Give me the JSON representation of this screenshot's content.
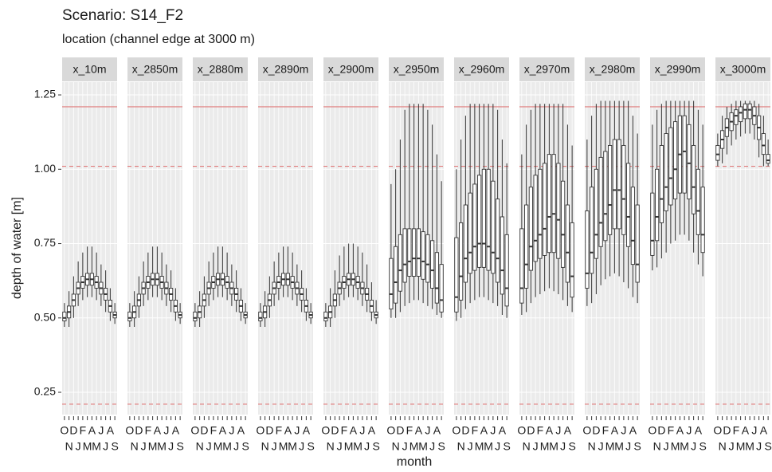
{
  "chart_data": {
    "type": "boxplot",
    "title": "Scenario: S14_F2",
    "subtitle": "location (channel edge at 3000 m)",
    "x_label": "month",
    "y_label": "depth of water [m]",
    "categories": [
      "O",
      "N",
      "D",
      "J",
      "F",
      "M",
      "A",
      "M",
      "J",
      "J",
      "A",
      "S"
    ],
    "ylim": [
      0.175,
      1.293
    ],
    "yticks": [
      {
        "value": 0.25,
        "label": "0.25"
      },
      {
        "value": 0.5,
        "label": "0.50"
      },
      {
        "value": 0.75,
        "label": "0.75"
      },
      {
        "value": 1,
        "label": "1.00"
      },
      {
        "value": 1.25,
        "label": "1.25"
      }
    ],
    "grid": true,
    "hlines": [
      {
        "value": 1.21,
        "color": "#e07b7b",
        "style": "solid"
      },
      {
        "value": 1.01,
        "color": "#e07b7b",
        "style": "dashed"
      },
      {
        "value": 0.21,
        "color": "#e07b7b",
        "style": "dashed"
      }
    ],
    "box_color": "#333333",
    "facets": [
      {
        "label": "x_10m",
        "lower": [
          0.47,
          0.47,
          0.5,
          0.54,
          0.56,
          0.57,
          0.57,
          0.56,
          0.54,
          0.52,
          0.49,
          0.48
        ],
        "q1": [
          0.49,
          0.5,
          0.54,
          0.58,
          0.6,
          0.61,
          0.61,
          0.6,
          0.58,
          0.56,
          0.52,
          0.5
        ],
        "median": [
          0.5,
          0.52,
          0.56,
          0.6,
          0.62,
          0.63,
          0.63,
          0.62,
          0.6,
          0.58,
          0.54,
          0.51
        ],
        "q3": [
          0.52,
          0.54,
          0.58,
          0.62,
          0.64,
          0.65,
          0.65,
          0.64,
          0.62,
          0.6,
          0.56,
          0.52
        ],
        "upper": [
          0.55,
          0.59,
          0.64,
          0.69,
          0.72,
          0.74,
          0.74,
          0.72,
          0.68,
          0.66,
          0.6,
          0.55
        ]
      },
      {
        "label": "x_2850m",
        "lower": [
          0.47,
          0.47,
          0.5,
          0.54,
          0.56,
          0.57,
          0.57,
          0.56,
          0.54,
          0.52,
          0.49,
          0.48
        ],
        "q1": [
          0.49,
          0.5,
          0.54,
          0.58,
          0.6,
          0.61,
          0.61,
          0.6,
          0.58,
          0.56,
          0.52,
          0.5
        ],
        "median": [
          0.5,
          0.52,
          0.56,
          0.6,
          0.62,
          0.63,
          0.63,
          0.62,
          0.6,
          0.58,
          0.54,
          0.51
        ],
        "q3": [
          0.52,
          0.54,
          0.58,
          0.62,
          0.64,
          0.65,
          0.65,
          0.64,
          0.62,
          0.6,
          0.56,
          0.52
        ],
        "upper": [
          0.55,
          0.59,
          0.64,
          0.69,
          0.72,
          0.74,
          0.74,
          0.72,
          0.68,
          0.66,
          0.6,
          0.55
        ]
      },
      {
        "label": "x_2880m",
        "lower": [
          0.47,
          0.47,
          0.5,
          0.54,
          0.56,
          0.57,
          0.57,
          0.56,
          0.54,
          0.52,
          0.49,
          0.48
        ],
        "q1": [
          0.49,
          0.5,
          0.54,
          0.58,
          0.6,
          0.61,
          0.61,
          0.6,
          0.58,
          0.56,
          0.52,
          0.5
        ],
        "median": [
          0.5,
          0.52,
          0.56,
          0.6,
          0.62,
          0.63,
          0.63,
          0.62,
          0.6,
          0.58,
          0.54,
          0.51
        ],
        "q3": [
          0.52,
          0.54,
          0.58,
          0.62,
          0.64,
          0.65,
          0.65,
          0.64,
          0.62,
          0.6,
          0.56,
          0.52
        ],
        "upper": [
          0.55,
          0.59,
          0.64,
          0.69,
          0.72,
          0.74,
          0.74,
          0.72,
          0.68,
          0.66,
          0.6,
          0.55
        ]
      },
      {
        "label": "x_2890m",
        "lower": [
          0.47,
          0.47,
          0.5,
          0.54,
          0.56,
          0.57,
          0.57,
          0.56,
          0.54,
          0.52,
          0.49,
          0.48
        ],
        "q1": [
          0.49,
          0.5,
          0.54,
          0.58,
          0.6,
          0.61,
          0.61,
          0.6,
          0.58,
          0.56,
          0.52,
          0.5
        ],
        "median": [
          0.5,
          0.52,
          0.56,
          0.6,
          0.62,
          0.63,
          0.63,
          0.62,
          0.6,
          0.58,
          0.54,
          0.51
        ],
        "q3": [
          0.52,
          0.54,
          0.58,
          0.62,
          0.64,
          0.65,
          0.65,
          0.64,
          0.62,
          0.6,
          0.56,
          0.52
        ],
        "upper": [
          0.55,
          0.59,
          0.64,
          0.69,
          0.72,
          0.74,
          0.74,
          0.72,
          0.68,
          0.66,
          0.6,
          0.55
        ]
      },
      {
        "label": "x_2900m",
        "lower": [
          0.47,
          0.47,
          0.5,
          0.54,
          0.56,
          0.57,
          0.57,
          0.56,
          0.54,
          0.52,
          0.49,
          0.48
        ],
        "q1": [
          0.49,
          0.5,
          0.54,
          0.58,
          0.6,
          0.61,
          0.61,
          0.6,
          0.58,
          0.56,
          0.52,
          0.5
        ],
        "median": [
          0.5,
          0.52,
          0.56,
          0.6,
          0.62,
          0.63,
          0.63,
          0.62,
          0.6,
          0.58,
          0.54,
          0.51
        ],
        "q3": [
          0.52,
          0.54,
          0.58,
          0.62,
          0.64,
          0.65,
          0.65,
          0.64,
          0.62,
          0.6,
          0.56,
          0.52
        ],
        "upper": [
          0.55,
          0.6,
          0.66,
          0.71,
          0.74,
          0.75,
          0.75,
          0.74,
          0.72,
          0.68,
          0.62,
          0.56
        ]
      },
      {
        "label": "x_2950m",
        "lower": [
          0.5,
          0.5,
          0.52,
          0.54,
          0.55,
          0.56,
          0.56,
          0.55,
          0.54,
          0.53,
          0.51,
          0.5
        ],
        "q1": [
          0.53,
          0.55,
          0.59,
          0.62,
          0.64,
          0.64,
          0.64,
          0.63,
          0.62,
          0.6,
          0.55,
          0.52
        ],
        "median": [
          0.58,
          0.62,
          0.66,
          0.68,
          0.69,
          0.7,
          0.7,
          0.69,
          0.68,
          0.66,
          0.6,
          0.56
        ],
        "q3": [
          0.7,
          0.74,
          0.78,
          0.8,
          0.8,
          0.8,
          0.8,
          0.79,
          0.78,
          0.76,
          0.72,
          0.68
        ],
        "upper": [
          0.95,
          1.0,
          1.1,
          1.2,
          1.22,
          1.22,
          1.22,
          1.22,
          1.2,
          1.15,
          1.05,
          0.96
        ]
      },
      {
        "label": "x_2960m",
        "lower": [
          0.49,
          0.5,
          0.53,
          0.55,
          0.56,
          0.57,
          0.57,
          0.56,
          0.55,
          0.54,
          0.51,
          0.5
        ],
        "q1": [
          0.52,
          0.56,
          0.62,
          0.65,
          0.66,
          0.67,
          0.67,
          0.66,
          0.65,
          0.62,
          0.58,
          0.54
        ],
        "median": [
          0.57,
          0.64,
          0.7,
          0.72,
          0.74,
          0.75,
          0.75,
          0.74,
          0.72,
          0.7,
          0.66,
          0.6
        ],
        "q3": [
          0.77,
          0.82,
          0.88,
          0.92,
          0.95,
          0.98,
          1.0,
          1.0,
          0.96,
          0.9,
          0.84,
          0.78
        ],
        "upper": [
          1.0,
          1.1,
          1.18,
          1.22,
          1.22,
          1.22,
          1.22,
          1.22,
          1.22,
          1.2,
          1.1,
          1.02
        ]
      },
      {
        "label": "x_2970m",
        "lower": [
          0.51,
          0.52,
          0.55,
          0.57,
          0.58,
          0.59,
          0.6,
          0.59,
          0.58,
          0.56,
          0.54,
          0.52
        ],
        "q1": [
          0.55,
          0.6,
          0.66,
          0.69,
          0.7,
          0.71,
          0.72,
          0.72,
          0.7,
          0.67,
          0.62,
          0.57
        ],
        "median": [
          0.6,
          0.68,
          0.74,
          0.76,
          0.78,
          0.8,
          0.84,
          0.85,
          0.83,
          0.78,
          0.72,
          0.64
        ],
        "q3": [
          0.8,
          0.88,
          0.94,
          0.98,
          1.0,
          1.02,
          1.05,
          1.05,
          1.02,
          0.96,
          0.88,
          0.82
        ],
        "upper": [
          1.05,
          1.15,
          1.2,
          1.22,
          1.22,
          1.22,
          1.22,
          1.22,
          1.22,
          1.22,
          1.15,
          1.08
        ]
      },
      {
        "label": "x_2980m",
        "lower": [
          0.54,
          0.55,
          0.58,
          0.61,
          0.63,
          0.64,
          0.65,
          0.64,
          0.62,
          0.6,
          0.57,
          0.55
        ],
        "q1": [
          0.6,
          0.65,
          0.7,
          0.74,
          0.76,
          0.78,
          0.8,
          0.8,
          0.78,
          0.74,
          0.68,
          0.62
        ],
        "median": [
          0.65,
          0.72,
          0.78,
          0.82,
          0.85,
          0.88,
          0.93,
          0.93,
          0.9,
          0.84,
          0.76,
          0.68
        ],
        "q3": [
          0.86,
          0.94,
          1.0,
          1.04,
          1.06,
          1.08,
          1.1,
          1.1,
          1.08,
          1.02,
          0.94,
          0.88
        ],
        "upper": [
          1.1,
          1.18,
          1.22,
          1.23,
          1.23,
          1.23,
          1.23,
          1.23,
          1.23,
          1.23,
          1.18,
          1.12
        ]
      },
      {
        "label": "x_2990m",
        "lower": [
          0.66,
          0.67,
          0.7,
          0.72,
          0.75,
          0.76,
          0.78,
          0.78,
          0.76,
          0.72,
          0.68,
          0.64
        ],
        "q1": [
          0.71,
          0.76,
          0.82,
          0.86,
          0.88,
          0.9,
          0.92,
          0.92,
          0.9,
          0.85,
          0.78,
          0.72
        ],
        "median": [
          0.76,
          0.84,
          0.9,
          0.94,
          0.97,
          1.0,
          1.05,
          1.06,
          1.02,
          0.94,
          0.86,
          0.78
        ],
        "q3": [
          0.92,
          1.0,
          1.08,
          1.12,
          1.14,
          1.16,
          1.18,
          1.18,
          1.15,
          1.08,
          1.0,
          0.94
        ],
        "upper": [
          1.15,
          1.2,
          1.22,
          1.23,
          1.23,
          1.23,
          1.23,
          1.23,
          1.23,
          1.23,
          1.2,
          1.15
        ]
      },
      {
        "label": "x_3000m",
        "lower": [
          1.01,
          1.02,
          1.05,
          1.08,
          1.1,
          1.11,
          1.12,
          1.12,
          1.1,
          1.04,
          1.01,
          1.01
        ],
        "q1": [
          1.03,
          1.07,
          1.11,
          1.13,
          1.15,
          1.16,
          1.17,
          1.17,
          1.15,
          1.1,
          1.05,
          1.02
        ],
        "median": [
          1.05,
          1.1,
          1.14,
          1.16,
          1.18,
          1.19,
          1.2,
          1.2,
          1.18,
          1.14,
          1.08,
          1.03
        ],
        "q3": [
          1.08,
          1.13,
          1.17,
          1.19,
          1.2,
          1.21,
          1.22,
          1.22,
          1.21,
          1.18,
          1.12,
          1.05
        ],
        "upper": [
          1.12,
          1.18,
          1.21,
          1.22,
          1.23,
          1.23,
          1.23,
          1.23,
          1.23,
          1.22,
          1.18,
          1.1
        ]
      }
    ]
  }
}
